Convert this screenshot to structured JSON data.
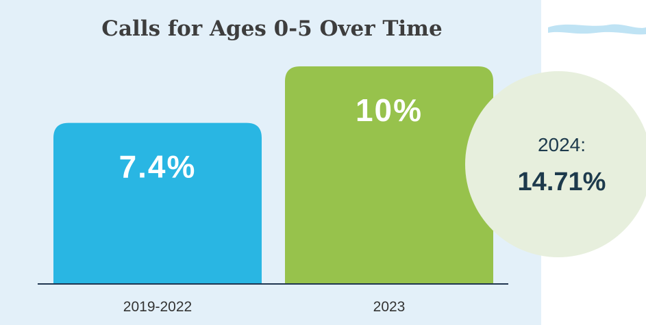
{
  "chart_data": {
    "type": "bar",
    "title": "Calls for Ages 0-5 Over Time",
    "categories": [
      "2019-2022",
      "2023"
    ],
    "values": [
      7.4,
      10
    ],
    "value_labels": [
      "7.4%",
      "10%"
    ],
    "colors": [
      "#29b6e3",
      "#97c24c"
    ],
    "callout": {
      "label": "2024:",
      "value": 14.71,
      "value_label": "14.71%"
    }
  }
}
